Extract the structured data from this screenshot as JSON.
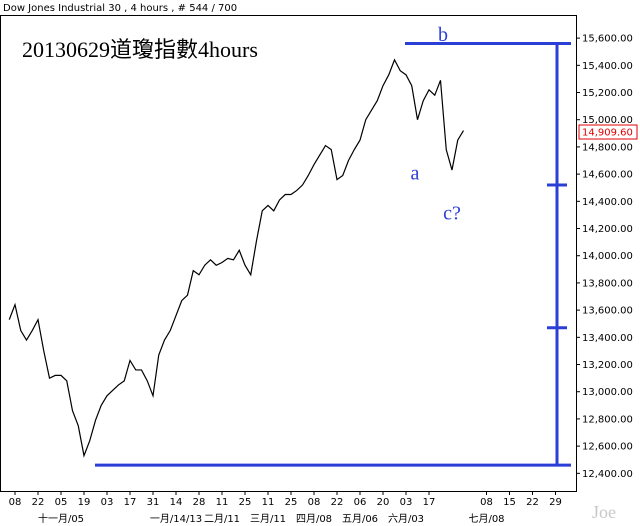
{
  "chart_data": {
    "type": "line",
    "header": "Dow Jones Industrial 30 , 4 hours , # 544 / 700",
    "title": "20130629道瓊指數4hours",
    "watermark": "Joe",
    "color": "#000000",
    "level_color": "#2b3fd6",
    "categories": [
      null,
      "08",
      null,
      null,
      null,
      "22",
      null,
      null,
      null,
      "05",
      null,
      null,
      null,
      "19",
      null,
      null,
      null,
      "03",
      null,
      null,
      null,
      "17",
      null,
      null,
      null,
      "31",
      null,
      null,
      null,
      "14",
      null,
      null,
      null,
      "28",
      null,
      null,
      null,
      "11",
      null,
      null,
      null,
      "25",
      null,
      null,
      null,
      "11",
      null,
      null,
      null,
      "25",
      null,
      null,
      null,
      "08",
      null,
      null,
      null,
      "22",
      null,
      null,
      null,
      "06",
      null,
      null,
      null,
      "20",
      null,
      null,
      null,
      "03",
      null,
      null,
      null,
      "17",
      null,
      null,
      null,
      null,
      null,
      null,
      null,
      null,
      null,
      "08",
      null,
      null,
      null,
      "15",
      null,
      null,
      null,
      "22",
      null,
      null,
      null,
      "29",
      null,
      null
    ],
    "categories2": [
      null,
      null,
      null,
      null,
      null,
      null,
      null,
      null,
      null,
      "十一月/05",
      null,
      null,
      null,
      null,
      null,
      null,
      null,
      null,
      null,
      null,
      null,
      null,
      null,
      null,
      null,
      null,
      null,
      null,
      null,
      "一月/14/13",
      null,
      null,
      null,
      null,
      null,
      null,
      null,
      "二月/11",
      null,
      null,
      null,
      null,
      null,
      null,
      null,
      "三月/11",
      null,
      null,
      null,
      null,
      null,
      null,
      null,
      "四月/08",
      null,
      null,
      null,
      null,
      null,
      null,
      null,
      "五月/06",
      null,
      null,
      null,
      null,
      null,
      null,
      null,
      "六月/03",
      null,
      null,
      null,
      null,
      null,
      null,
      null,
      null,
      null,
      null,
      null,
      null,
      null,
      "七月/08",
      null,
      null,
      null,
      null,
      null,
      null,
      null,
      null,
      null,
      null,
      null,
      null,
      null,
      null
    ],
    "values": [
      13530,
      13640,
      13450,
      13380,
      13450,
      13530,
      13300,
      13100,
      13120,
      13120,
      13080,
      12860,
      12750,
      12530,
      12640,
      12790,
      12900,
      12970,
      13010,
      13050,
      13080,
      13230,
      13160,
      13160,
      13080,
      12970,
      13270,
      13380,
      13450,
      13560,
      13670,
      13710,
      13890,
      13860,
      13930,
      13970,
      13930,
      13950,
      13980,
      13970,
      14040,
      13930,
      13860,
      14110,
      14330,
      14370,
      14330,
      14410,
      14450,
      14450,
      14480,
      14520,
      14590,
      14670,
      14740,
      14810,
      14780,
      14560,
      14590,
      14700,
      14780,
      14850,
      15000,
      15070,
      15140,
      15250,
      15330,
      15440,
      15360,
      15330,
      15250,
      15000,
      15140,
      15220,
      15180,
      15290,
      14780,
      14630,
      14850,
      14920,
      null,
      null,
      null,
      null,
      null,
      null,
      null,
      null,
      null,
      null,
      null,
      null,
      null,
      null,
      null,
      null,
      null,
      null
    ],
    "ylim": [
      12270,
      15770
    ],
    "yticks": [
      {
        "value": 12400,
        "label": "12,400.00"
      },
      {
        "value": 12600,
        "label": "12,600.00"
      },
      {
        "value": 12800,
        "label": "12,800.00"
      },
      {
        "value": 13000,
        "label": "13,000.00"
      },
      {
        "value": 13200,
        "label": "13,200.00"
      },
      {
        "value": 13400,
        "label": "13,400.00"
      },
      {
        "value": 13600,
        "label": "13,600.00"
      },
      {
        "value": 13800,
        "label": "13,800.00"
      },
      {
        "value": 14000,
        "label": "14,000.00"
      },
      {
        "value": 14200,
        "label": "14,200.00"
      },
      {
        "value": 14400,
        "label": "14,400.00"
      },
      {
        "value": 14600,
        "label": "14,600.00"
      },
      {
        "value": 14800,
        "label": "14,800.00"
      },
      {
        "value": 15000,
        "label": "15,000.00"
      },
      {
        "value": 15200,
        "label": "15,200.00"
      },
      {
        "value": 15400,
        "label": "15,400.00"
      },
      {
        "value": 15600,
        "label": "15,600.00"
      }
    ],
    "last_price": {
      "value": 14909.6,
      "label": "14,909.60"
    },
    "wave_levels": [
      15560,
      14520,
      13470,
      12460
    ],
    "annotations": [
      {
        "text": "a",
        "value": 14780
      },
      {
        "text": "b",
        "value": 15430
      },
      {
        "text": "c?",
        "value": 14450
      }
    ]
  }
}
